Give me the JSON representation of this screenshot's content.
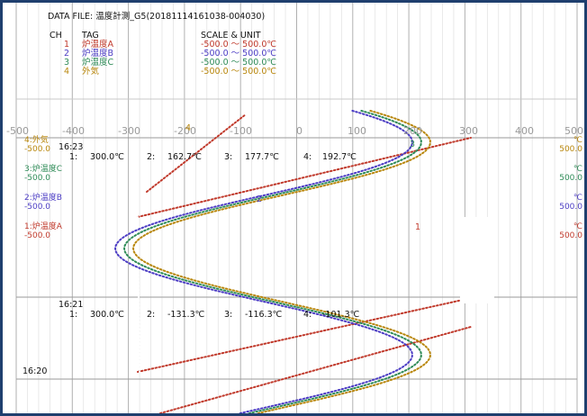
{
  "header": {
    "data_file_label": "DATA FILE:",
    "data_file_name": "温度計測_G5(20181114161038-004030)",
    "col_ch": "CH",
    "col_tag": "TAG",
    "col_scale": "SCALE & UNIT",
    "channels": [
      {
        "ch": "1",
        "tag": "炉温度A",
        "scale": "-500.0 ～ 500.0℃",
        "color": "#c0392b"
      },
      {
        "ch": "2",
        "tag": "炉温度B",
        "scale": "-500.0 ～ 500.0℃",
        "color": "#4b3cc4"
      },
      {
        "ch": "3",
        "tag": "炉温度C",
        "scale": "-500.0 ～ 500.0℃",
        "color": "#2e8b57"
      },
      {
        "ch": "4",
        "tag": "外気",
        "scale": "-500.0 ～ 500.0℃",
        "color": "#b8860b"
      }
    ]
  },
  "axis": {
    "ticks": [
      "-500",
      "-400",
      "-300",
      "-200",
      "-100",
      "0",
      "100",
      "200",
      "300",
      "400",
      "500"
    ]
  },
  "side_labels": {
    "left": [
      {
        "name": "4:外気",
        "min": "-500.0",
        "color": "#b8860b"
      },
      {
        "name": "3:炉温度C",
        "min": "-500.0",
        "color": "#2e8b57"
      },
      {
        "name": "2:炉温度B",
        "min": "-500.0",
        "color": "#4b3cc4"
      },
      {
        "name": "1:炉温度A",
        "min": "-500.0",
        "color": "#c0392b"
      }
    ],
    "right": [
      {
        "unit": "℃",
        "max": "500.0",
        "color": "#b8860b"
      },
      {
        "unit": "℃",
        "max": "500.0",
        "color": "#2e8b57"
      },
      {
        "unit": "℃",
        "max": "500.0",
        "color": "#4b3cc4"
      },
      {
        "unit": "℃",
        "max": "500.0",
        "color": "#c0392b"
      }
    ]
  },
  "snapshots": [
    {
      "time": "16:23",
      "ch1": "1:",
      "v1": "300.0℃",
      "ch2": "2:",
      "v2": "162.7℃",
      "ch3": "3:",
      "v3": "177.7℃",
      "ch4": "4:",
      "v4": "192.7℃"
    },
    {
      "time": "16:21",
      "ch1": "1:",
      "v1": "300.0℃",
      "ch2": "2:",
      "v2": "-131.3℃",
      "ch3": "3:",
      "v3": "-116.3℃",
      "ch4": "4:",
      "v4": "-101.3℃"
    }
  ],
  "time_marks": {
    "t3": "16:20"
  },
  "trace_markers": {
    "m1": "1",
    "m2": "2",
    "m3": "3",
    "m4": "4"
  },
  "chart_data": {
    "type": "line",
    "x_range": [
      -500,
      500
    ],
    "ticks": [
      -500,
      -400,
      -300,
      -200,
      -100,
      0,
      100,
      200,
      300,
      400,
      500
    ],
    "unit": "℃",
    "series": [
      {
        "name": "炉温度A",
        "color": "#c0392b"
      },
      {
        "name": "炉温度B",
        "color": "#4b3cc4"
      },
      {
        "name": "炉温度C",
        "color": "#2e8b57"
      },
      {
        "name": "外気",
        "color": "#b8860b"
      }
    ]
  }
}
